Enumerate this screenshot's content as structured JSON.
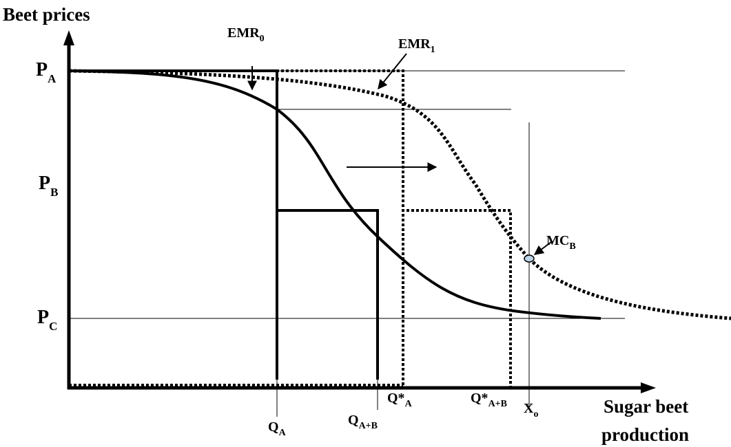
{
  "axes": {
    "y_title": "Beet prices",
    "x_title_line1": "Sugar beet",
    "x_title_line2": "production"
  },
  "price_labels": {
    "pa": {
      "main": "P",
      "sub": "A"
    },
    "pb": {
      "main": "P",
      "sub": "B"
    },
    "pc": {
      "main": "P",
      "sub": "C"
    }
  },
  "quantity_labels": {
    "qa": {
      "main": "Q",
      "sub": "A"
    },
    "qab": {
      "main": "Q",
      "sub": "A+B"
    },
    "qsa": {
      "main": "Q*",
      "sub": "A"
    },
    "qsab": {
      "main": "Q*",
      "sub": "A+B"
    },
    "xo": {
      "main": "X",
      "sub": "o"
    }
  },
  "curve_labels": {
    "emr0": {
      "main": "EMR",
      "sub": "0"
    },
    "emr1": {
      "main": "EMR",
      "sub": "1"
    },
    "mcb": {
      "main": "MC",
      "sub": "B"
    }
  },
  "colors": {
    "ink": "#000000",
    "marker_fill": "#bcd3e6"
  }
}
